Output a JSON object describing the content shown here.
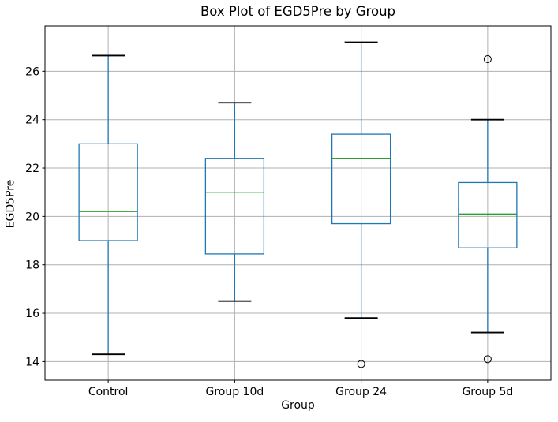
{
  "chart_data": {
    "type": "box",
    "title": "Box Plot of EGD5Pre by Group",
    "xlabel": "Group",
    "ylabel": "EGD5Pre",
    "categories": [
      "Control",
      "Group 10d",
      "Group 24",
      "Group 5d"
    ],
    "series": [
      {
        "name": "Control",
        "whisker_low": 14.3,
        "q1": 19.0,
        "median": 20.2,
        "q3": 23.0,
        "whisker_high": 26.65,
        "outliers": []
      },
      {
        "name": "Group 10d",
        "whisker_low": 16.5,
        "q1": 18.45,
        "median": 21.0,
        "q3": 22.4,
        "whisker_high": 24.7,
        "outliers": []
      },
      {
        "name": "Group 24",
        "whisker_low": 15.8,
        "q1": 19.7,
        "median": 22.4,
        "q3": 23.4,
        "whisker_high": 27.2,
        "outliers": [
          13.9
        ]
      },
      {
        "name": "Group 5d",
        "whisker_low": 15.2,
        "q1": 18.7,
        "median": 20.1,
        "q3": 21.4,
        "whisker_high": 24.0,
        "outliers": [
          26.5,
          14.1
        ]
      }
    ],
    "ylim": [
      13.23,
      27.87
    ],
    "yticks": [
      14,
      16,
      18,
      20,
      22,
      24,
      26
    ],
    "grid": true,
    "legend": "none",
    "colors": {
      "box": "#1f77b4",
      "whisker": "#1f77b4",
      "median": "#2ca02c",
      "cap": "#000000",
      "outlier": "#000000",
      "grid": "#b0b0b0",
      "axis": "#000000",
      "background": "#ffffff"
    }
  }
}
